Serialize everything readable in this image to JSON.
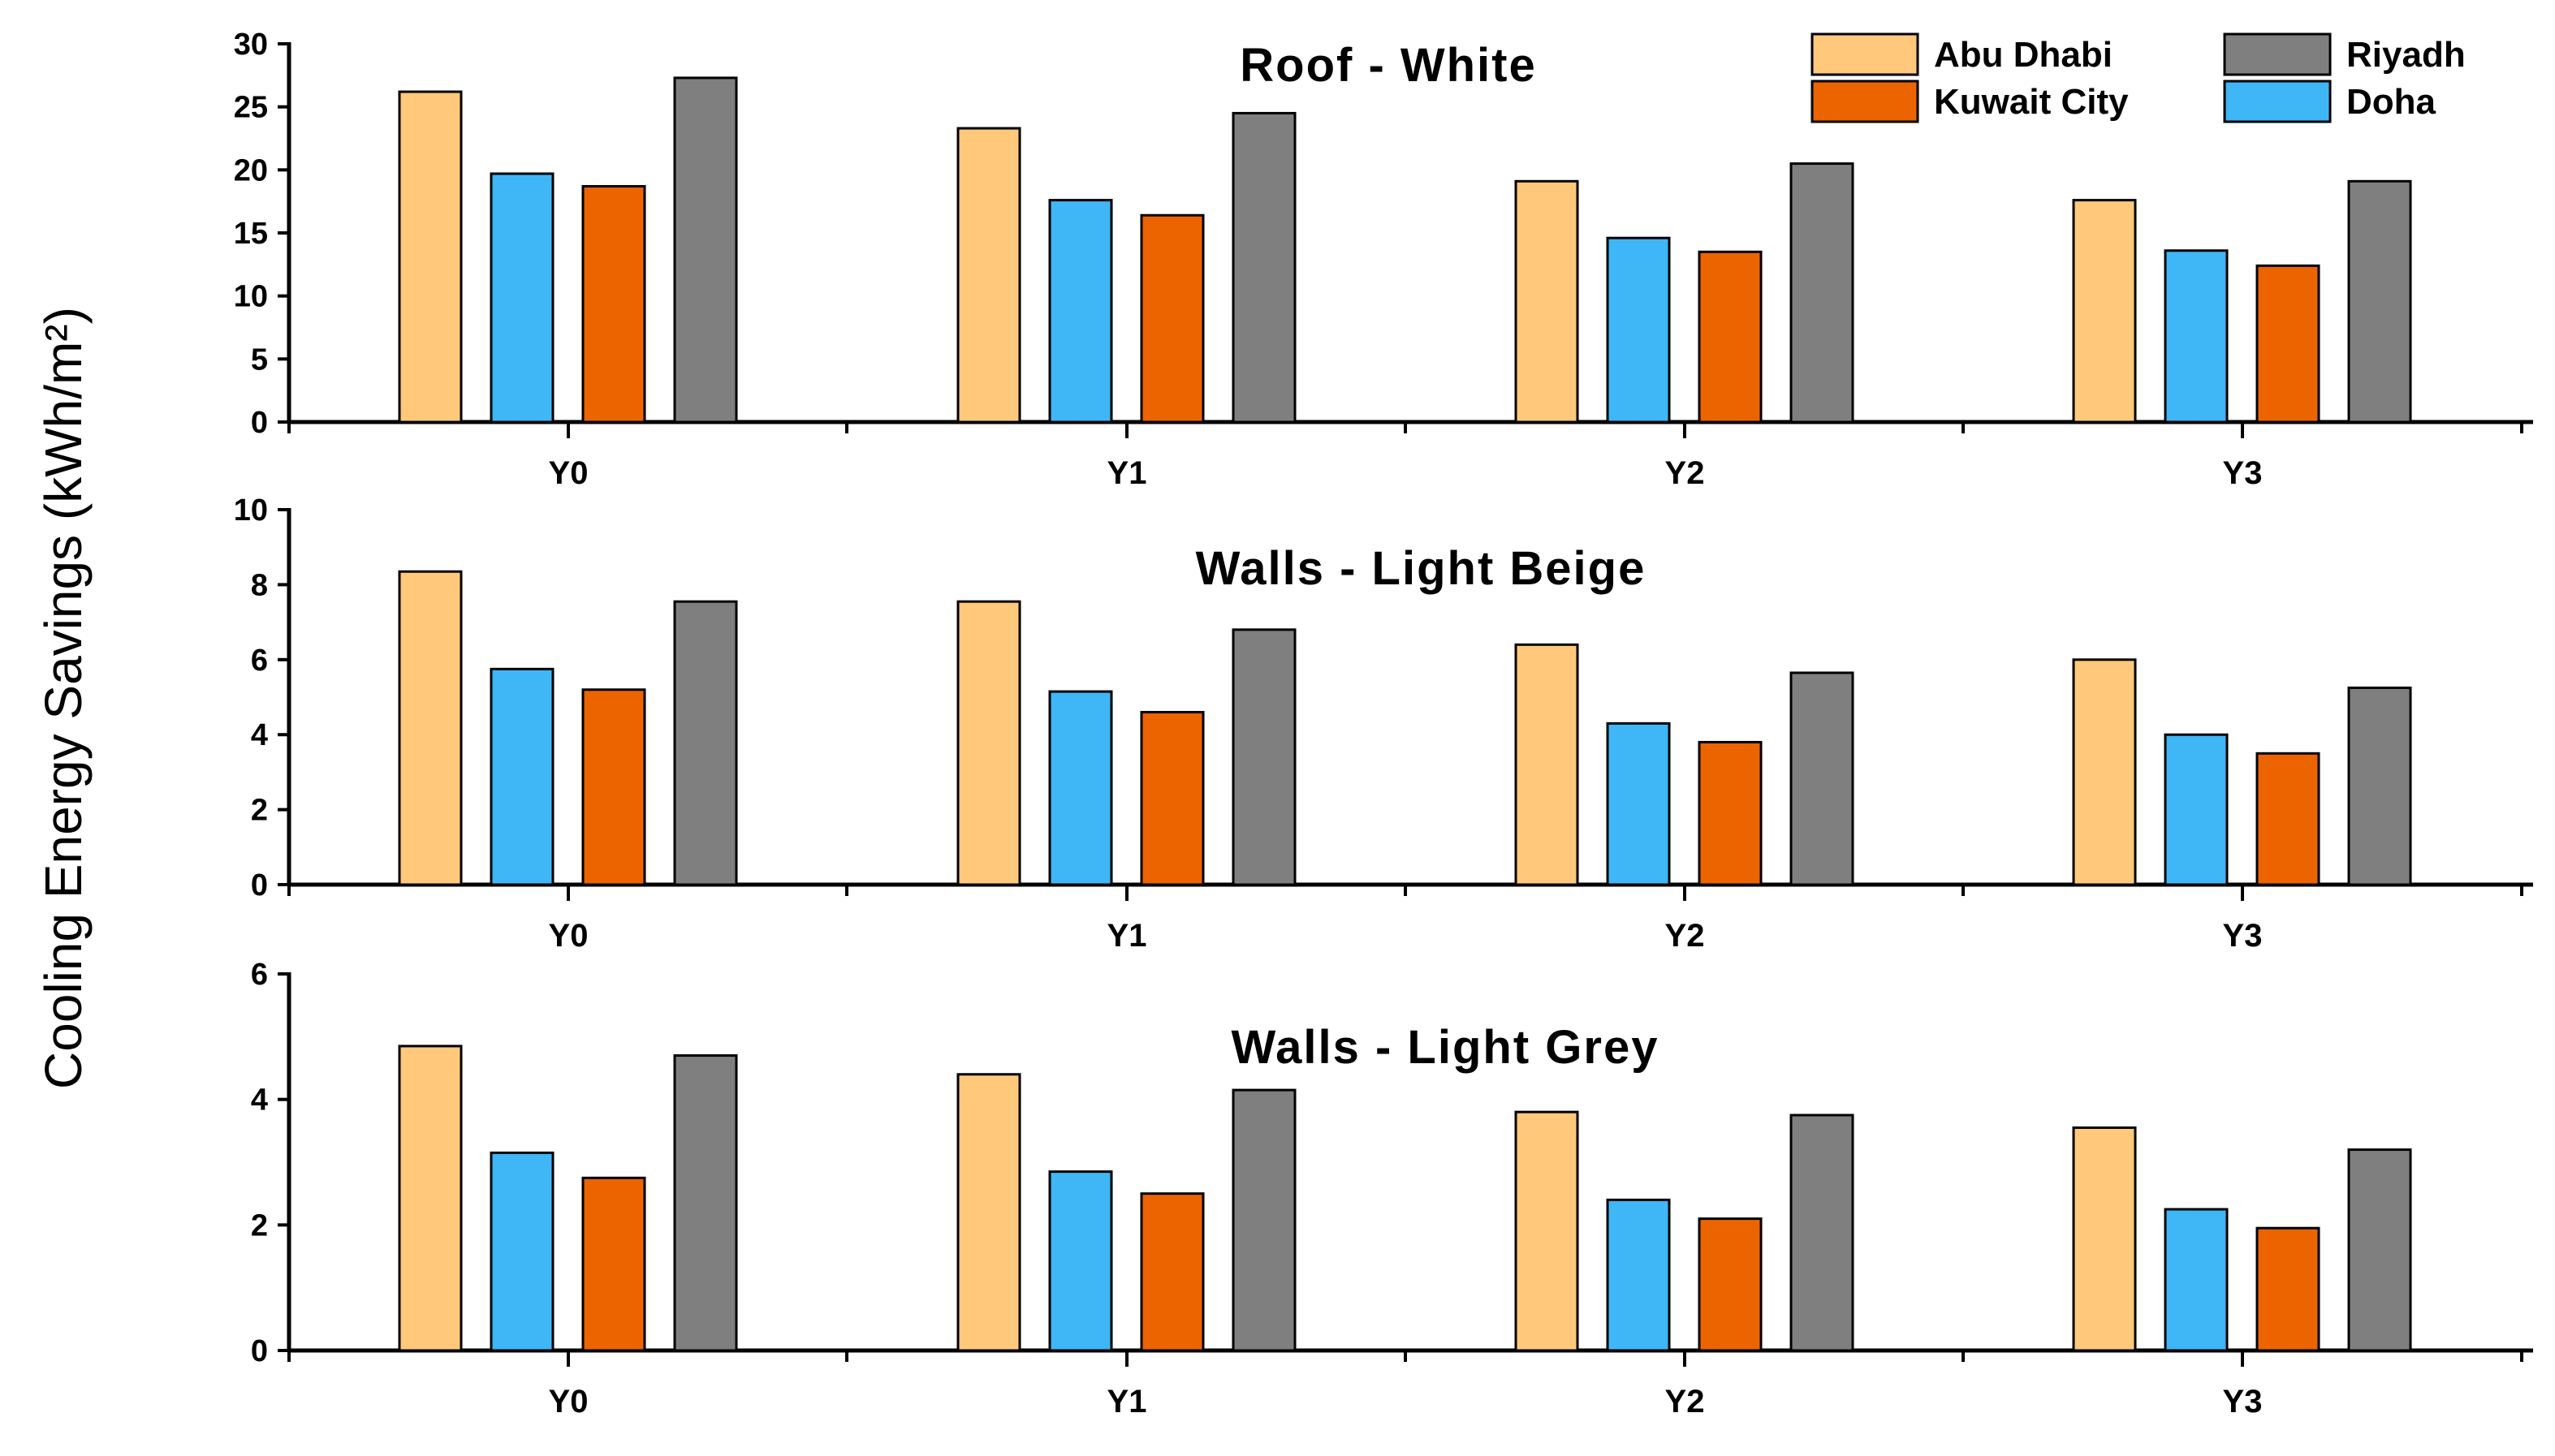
{
  "ylabel": "Cooling Energy Savings (kWh/m²)",
  "legend": [
    {
      "name": "Abu Dhabi",
      "color": "#FFC87A"
    },
    {
      "name": "Riyadh",
      "color": "#7F7F7F"
    },
    {
      "name": "Kuwait City",
      "color": "#EB6400"
    },
    {
      "name": "Doha",
      "color": "#3FB6F5"
    }
  ],
  "chart_data": [
    {
      "type": "bar",
      "title": "Roof - White",
      "categories": [
        "Y0",
        "Y1",
        "Y2",
        "Y3"
      ],
      "ylim": [
        0,
        30
      ],
      "yticks": [
        0,
        5,
        10,
        15,
        20,
        25,
        30
      ],
      "series": [
        {
          "name": "Abu Dhabi",
          "color": "#FFC87A",
          "values": [
            26.2,
            23.3,
            19.1,
            17.6
          ]
        },
        {
          "name": "Doha",
          "color": "#3FB6F5",
          "values": [
            19.7,
            17.6,
            14.6,
            13.6
          ]
        },
        {
          "name": "Kuwait City",
          "color": "#EB6400",
          "values": [
            18.7,
            16.4,
            13.5,
            12.4
          ]
        },
        {
          "name": "Riyadh",
          "color": "#7F7F7F",
          "values": [
            27.3,
            24.5,
            20.5,
            19.1
          ]
        }
      ]
    },
    {
      "type": "bar",
      "title": "Walls - Light Beige",
      "categories": [
        "Y0",
        "Y1",
        "Y2",
        "Y3"
      ],
      "ylim": [
        0,
        10
      ],
      "yticks": [
        0,
        2,
        4,
        6,
        8,
        10
      ],
      "series": [
        {
          "name": "Abu Dhabi",
          "color": "#FFC87A",
          "values": [
            8.35,
            7.55,
            6.4,
            6.0
          ]
        },
        {
          "name": "Doha",
          "color": "#3FB6F5",
          "values": [
            5.75,
            5.15,
            4.3,
            4.0
          ]
        },
        {
          "name": "Kuwait City",
          "color": "#EB6400",
          "values": [
            5.2,
            4.6,
            3.8,
            3.5
          ]
        },
        {
          "name": "Riyadh",
          "color": "#7F7F7F",
          "values": [
            7.55,
            6.8,
            5.65,
            5.25
          ]
        }
      ]
    },
    {
      "type": "bar",
      "title": "Walls - Light Grey",
      "categories": [
        "Y0",
        "Y1",
        "Y2",
        "Y3"
      ],
      "ylim": [
        0,
        6
      ],
      "yticks": [
        0,
        2,
        4,
        6
      ],
      "series": [
        {
          "name": "Abu Dhabi",
          "color": "#FFC87A",
          "values": [
            4.85,
            4.4,
            3.8,
            3.55
          ]
        },
        {
          "name": "Doha",
          "color": "#3FB6F5",
          "values": [
            3.15,
            2.85,
            2.4,
            2.25
          ]
        },
        {
          "name": "Kuwait City",
          "color": "#EB6400",
          "values": [
            2.75,
            2.5,
            2.1,
            1.95
          ]
        },
        {
          "name": "Riyadh",
          "color": "#7F7F7F",
          "values": [
            4.7,
            4.15,
            3.75,
            3.2
          ]
        }
      ]
    }
  ]
}
